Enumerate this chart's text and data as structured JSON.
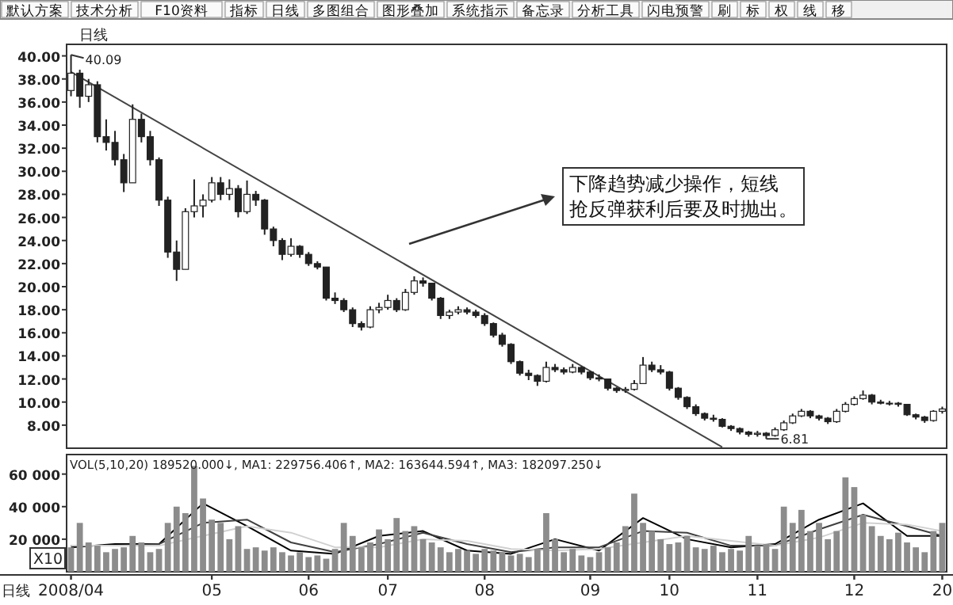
{
  "chart_data": [
    {
      "type": "candlestick",
      "title": "日线",
      "tick_labels": "y",
      "categories": [
        "2008/04",
        null,
        null,
        null,
        null,
        null,
        null,
        null,
        null,
        null,
        null,
        null,
        null,
        null,
        null,
        null,
        "05",
        null,
        null,
        null,
        null,
        null,
        null,
        null,
        null,
        null,
        null,
        "06",
        null,
        null,
        null,
        null,
        null,
        null,
        null,
        null,
        "07",
        null,
        null,
        null,
        null,
        null,
        null,
        null,
        null,
        null,
        null,
        "08",
        null,
        null,
        null,
        null,
        null,
        null,
        null,
        null,
        null,
        null,
        null,
        "09",
        null,
        null,
        null,
        null,
        null,
        null,
        null,
        null,
        "10",
        null,
        null,
        null,
        null,
        null,
        null,
        null,
        null,
        null,
        "11",
        null,
        null,
        null,
        null,
        null,
        null,
        null,
        null,
        null,
        null,
        "12",
        null,
        null,
        null,
        null,
        null,
        null,
        null,
        null,
        null,
        "20"
      ],
      "ohlc": [
        [
          37,
          40.09,
          36.5,
          38.5
        ],
        [
          38.5,
          38.8,
          35.5,
          36.5
        ],
        [
          36.5,
          38,
          36,
          37.5
        ],
        [
          37.5,
          37.8,
          32.5,
          33
        ],
        [
          33,
          34.5,
          31.8,
          32.5
        ],
        [
          32.5,
          33.5,
          30.5,
          31
        ],
        [
          31,
          31.5,
          28.2,
          29
        ],
        [
          29,
          35.8,
          29,
          34.5
        ],
        [
          34.5,
          35,
          32.5,
          33
        ],
        [
          33,
          33.5,
          30.5,
          31
        ],
        [
          31,
          31.2,
          27,
          27.5
        ],
        [
          27.5,
          27.8,
          22.5,
          23
        ],
        [
          23,
          24,
          20.5,
          21.5
        ],
        [
          21.5,
          26.8,
          21.5,
          26.5
        ],
        [
          26.5,
          29.3,
          26,
          27
        ],
        [
          27,
          28,
          26,
          27.5
        ],
        [
          27.5,
          29.5,
          27.3,
          29
        ],
        [
          29,
          29.5,
          27.5,
          28
        ],
        [
          28,
          29.3,
          27.5,
          28.5
        ],
        [
          28.5,
          28.8,
          26,
          26.5
        ],
        [
          26.5,
          29.2,
          26.3,
          28
        ],
        [
          28,
          28.3,
          27,
          27.5
        ],
        [
          27.5,
          27.6,
          24.5,
          25
        ],
        [
          25,
          25.2,
          23.5,
          24
        ],
        [
          24,
          24.2,
          22.3,
          22.8
        ],
        [
          22.8,
          24.2,
          22.6,
          23.5
        ],
        [
          23.5,
          23.6,
          22.5,
          22.8
        ],
        [
          22.8,
          23,
          21.8,
          22
        ],
        [
          22,
          22.2,
          21.5,
          21.7
        ],
        [
          21.7,
          21.7,
          18.8,
          19
        ],
        [
          19,
          19.5,
          18.5,
          18.8
        ],
        [
          18.8,
          19,
          17.8,
          18
        ],
        [
          18,
          18.2,
          16.5,
          16.8
        ],
        [
          16.8,
          17,
          16.2,
          16.5
        ],
        [
          16.5,
          18.3,
          16.4,
          18
        ],
        [
          18,
          18.6,
          17.7,
          18.2
        ],
        [
          18.2,
          19.3,
          18,
          18.8
        ],
        [
          18.8,
          19,
          17.8,
          18
        ],
        [
          18,
          19.8,
          17.9,
          19.5
        ],
        [
          19.5,
          20.9,
          19.3,
          20.5
        ],
        [
          20.5,
          20.8,
          20,
          20.3
        ],
        [
          20.3,
          20.3,
          18.8,
          19
        ],
        [
          19,
          19.1,
          17.2,
          17.5
        ],
        [
          17.5,
          18,
          17.2,
          17.8
        ],
        [
          17.8,
          18.3,
          17.6,
          18
        ],
        [
          18,
          18.2,
          17.6,
          17.8
        ],
        [
          17.8,
          18,
          17.3,
          17.5
        ],
        [
          17.5,
          17.7,
          16.6,
          16.8
        ],
        [
          16.8,
          16.9,
          15.6,
          15.8
        ],
        [
          15.8,
          16,
          14.8,
          15
        ],
        [
          15,
          15.1,
          13.3,
          13.5
        ],
        [
          13.5,
          13.6,
          12.3,
          12.5
        ],
        [
          12.5,
          12.8,
          11.9,
          12.3
        ],
        [
          12.3,
          12.4,
          11.4,
          11.8
        ],
        [
          11.8,
          13.5,
          11.7,
          13
        ],
        [
          13,
          13.3,
          12.6,
          12.8
        ],
        [
          12.8,
          13,
          12.4,
          12.6
        ],
        [
          12.6,
          13.3,
          12.5,
          13
        ],
        [
          13,
          13.1,
          12.4,
          12.6
        ],
        [
          12.6,
          12.7,
          11.9,
          12.1
        ],
        [
          12.1,
          12.4,
          11.8,
          12
        ],
        [
          12,
          12,
          11,
          11.2
        ],
        [
          11.2,
          11.3,
          10.8,
          11
        ],
        [
          11,
          11.3,
          10.8,
          11.1
        ],
        [
          11.1,
          11.9,
          11,
          11.6
        ],
        [
          11.6,
          13.9,
          11.6,
          13.2
        ],
        [
          13.2,
          13.5,
          12.6,
          12.8
        ],
        [
          12.8,
          13.2,
          12.4,
          12.6
        ],
        [
          12.6,
          12.7,
          11,
          11.2
        ],
        [
          11.2,
          11.3,
          10.2,
          10.4
        ],
        [
          10.4,
          10.5,
          9.4,
          9.6
        ],
        [
          9.6,
          9.8,
          8.8,
          9
        ],
        [
          9,
          9.1,
          8.4,
          8.6
        ],
        [
          8.6,
          8.9,
          8.3,
          8.5
        ],
        [
          8.5,
          8.6,
          7.8,
          7.9
        ],
        [
          7.9,
          8,
          7.5,
          7.7
        ],
        [
          7.7,
          7.8,
          7.2,
          7.4
        ],
        [
          7.4,
          7.5,
          7,
          7.2
        ],
        [
          7.2,
          7.5,
          7,
          7.3
        ],
        [
          7.3,
          7.4,
          6.81,
          7.1
        ],
        [
          7.1,
          7.8,
          7,
          7.6
        ],
        [
          7.6,
          8.4,
          7.5,
          8.2
        ],
        [
          8.2,
          9,
          8.1,
          8.8
        ],
        [
          8.8,
          9.4,
          8.7,
          9.2
        ],
        [
          9.2,
          9.3,
          8.6,
          8.8
        ],
        [
          8.8,
          8.9,
          8.4,
          8.6
        ],
        [
          8.6,
          8.7,
          8.1,
          8.3
        ],
        [
          8.3,
          9.4,
          8.2,
          9.2
        ],
        [
          9.2,
          10,
          9.1,
          9.8
        ],
        [
          9.8,
          10.5,
          9.7,
          10.3
        ],
        [
          10.3,
          11,
          10.2,
          10.6
        ],
        [
          10.6,
          10.7,
          9.8,
          10
        ],
        [
          10,
          10.2,
          9.8,
          9.9
        ],
        [
          9.9,
          10.1,
          9.7,
          9.9
        ],
        [
          9.9,
          10,
          9.6,
          9.8
        ],
        [
          9.8,
          9.8,
          8.8,
          8.9
        ],
        [
          8.9,
          9,
          8.5,
          8.7
        ],
        [
          8.7,
          8.8,
          8.2,
          8.4
        ],
        [
          8.4,
          9.3,
          8.3,
          9.2
        ],
        [
          9.2,
          9.6,
          9,
          9.4
        ]
      ],
      "color": "#222222",
      "series": [
        {
          "type": "line",
          "color": "#444444",
          "values": [
            38.6,
            null,
            null,
            null,
            null,
            null,
            null,
            null,
            null,
            null,
            null,
            null,
            null,
            null,
            null,
            null,
            null,
            null,
            null,
            null,
            null,
            null,
            null,
            null,
            null,
            null,
            null,
            null,
            null,
            null,
            null,
            null,
            null,
            null,
            null,
            null,
            null,
            null,
            null,
            null,
            null,
            null,
            null,
            null,
            null,
            null,
            null,
            null,
            null,
            null,
            null,
            null,
            null,
            null,
            null,
            null,
            null,
            null,
            null,
            null,
            null,
            null,
            null,
            null,
            null,
            null,
            null,
            null,
            null,
            null,
            null,
            null,
            null,
            null,
            6.1,
            null,
            null,
            null,
            null,
            null,
            null,
            null,
            null,
            null,
            null,
            null,
            null,
            null,
            null,
            null,
            null,
            null,
            null,
            null,
            null,
            null,
            null,
            null,
            null,
            null
          ]
        }
      ],
      "ylim": [
        6,
        41
      ],
      "yticks": [
        {
          "value": 8,
          "label": "8.00"
        },
        {
          "value": 10,
          "label": "10.00"
        },
        {
          "value": 12,
          "label": "12.00"
        },
        {
          "value": 14,
          "label": "14.00"
        },
        {
          "value": 16,
          "label": "16.00"
        },
        {
          "value": 18,
          "label": "18.00"
        },
        {
          "value": 20,
          "label": "20.00"
        },
        {
          "value": 22,
          "label": "22.00"
        },
        {
          "value": 24,
          "label": "24.00"
        },
        {
          "value": 26,
          "label": "26.00"
        },
        {
          "value": 28,
          "label": "28.00"
        },
        {
          "value": 30,
          "label": "30.00"
        },
        {
          "value": 32,
          "label": "32.00"
        },
        {
          "value": 34,
          "label": "34.00"
        },
        {
          "value": 36,
          "label": "36.00"
        },
        {
          "value": 38,
          "label": "38.00"
        },
        {
          "value": 40,
          "label": "40.00"
        }
      ],
      "annotations": [
        "下降趋势减少操作，短线抢反弹获利后要及时抛出。",
        "40.09",
        "6.81",
        "默认方案",
        "技术分析",
        "F10资料",
        "指标",
        "日线",
        "多图组合",
        "图形叠加",
        "系统指示",
        "备忘录",
        "分析工具",
        "闪电预警",
        "刷",
        "标",
        "权",
        "线",
        "移"
      ]
    },
    {
      "type": "bar",
      "categories": [
        "2008/04",
        null,
        null,
        null,
        null,
        null,
        null,
        null,
        null,
        null,
        null,
        null,
        null,
        null,
        null,
        null,
        "05",
        null,
        null,
        null,
        null,
        null,
        null,
        null,
        null,
        null,
        null,
        "06",
        null,
        null,
        null,
        null,
        null,
        null,
        null,
        null,
        "07",
        null,
        null,
        null,
        null,
        null,
        null,
        null,
        null,
        null,
        null,
        "08",
        null,
        null,
        null,
        null,
        null,
        null,
        null,
        null,
        null,
        null,
        null,
        "09",
        null,
        null,
        null,
        null,
        null,
        null,
        null,
        null,
        "10",
        null,
        null,
        null,
        null,
        null,
        null,
        null,
        null,
        null,
        "11",
        null,
        null,
        null,
        null,
        null,
        null,
        null,
        null,
        null,
        null,
        "12",
        null,
        null,
        null,
        null,
        null,
        null,
        null,
        null,
        null,
        "20"
      ],
      "values": [
        15000,
        30000,
        18000,
        16000,
        12000,
        14000,
        15000,
        22000,
        18000,
        12000,
        14000,
        30000,
        40000,
        36000,
        65000,
        45000,
        32000,
        30000,
        20000,
        28000,
        14000,
        15000,
        13000,
        15000,
        12000,
        10000,
        12000,
        9000,
        10000,
        8000,
        14000,
        30000,
        22000,
        15000,
        18000,
        26000,
        20000,
        33000,
        25000,
        28000,
        20000,
        18000,
        15000,
        12000,
        14000,
        13000,
        11000,
        14000,
        13000,
        12000,
        10000,
        11000,
        9000,
        14000,
        36000,
        20000,
        12000,
        14000,
        10000,
        9000,
        12000,
        15000,
        18000,
        28000,
        48000,
        30000,
        25000,
        20000,
        17000,
        18000,
        22000,
        15000,
        14000,
        16000,
        12000,
        14000,
        13000,
        22000,
        16000,
        17000,
        14000,
        40000,
        30000,
        38000,
        25000,
        30000,
        20000,
        25000,
        58000,
        52000,
        35000,
        28000,
        22000,
        20000,
        24000,
        18000,
        15000,
        12000,
        25000,
        30000
      ],
      "color": "#8c8c8c",
      "series": [
        {
          "type": "line",
          "color": "#000000",
          "values": [
            15000,
            null,
            null,
            null,
            null,
            17000,
            null,
            null,
            null,
            null,
            17000,
            null,
            null,
            null,
            null,
            42000,
            null,
            null,
            null,
            null,
            28000,
            null,
            null,
            null,
            null,
            13000,
            null,
            null,
            null,
            null,
            11000,
            null,
            null,
            null,
            null,
            22000,
            null,
            null,
            null,
            null,
            25000,
            null,
            null,
            null,
            null,
            13000,
            null,
            null,
            null,
            null,
            11000,
            null,
            null,
            null,
            null,
            20000,
            null,
            null,
            null,
            null,
            13000,
            null,
            null,
            null,
            null,
            33000,
            null,
            null,
            null,
            null,
            20000,
            null,
            null,
            null,
            null,
            15000,
            null,
            null,
            null,
            null,
            17000,
            null,
            null,
            null,
            null,
            32000,
            null,
            null,
            null,
            null,
            42000,
            null,
            null,
            null,
            null,
            22000,
            null,
            null,
            null,
            22000
          ]
        },
        {
          "type": "line",
          "color": "#404040",
          "values": [
            16000,
            null,
            null,
            null,
            null,
            16000,
            null,
            null,
            null,
            null,
            17000,
            null,
            null,
            null,
            null,
            30000,
            null,
            null,
            null,
            null,
            32000,
            null,
            null,
            null,
            null,
            18000,
            null,
            null,
            null,
            null,
            12000,
            null,
            null,
            null,
            null,
            17000,
            null,
            null,
            null,
            null,
            24000,
            null,
            null,
            null,
            null,
            17000,
            null,
            null,
            null,
            null,
            12000,
            null,
            null,
            null,
            null,
            15000,
            null,
            null,
            null,
            null,
            15000,
            null,
            null,
            null,
            null,
            25000,
            null,
            null,
            null,
            null,
            24000,
            null,
            null,
            null,
            null,
            16000,
            null,
            null,
            null,
            null,
            16000,
            null,
            null,
            null,
            null,
            26000,
            null,
            null,
            null,
            null,
            35000,
            null,
            null,
            null,
            null,
            28000,
            null,
            null,
            null,
            22000
          ]
        },
        {
          "type": "line",
          "color": "#d0d0d0",
          "values": [
            16000,
            null,
            null,
            null,
            null,
            16000,
            null,
            null,
            null,
            null,
            16000,
            null,
            null,
            null,
            null,
            22000,
            null,
            null,
            null,
            null,
            28000,
            null,
            null,
            null,
            null,
            24000,
            null,
            null,
            null,
            null,
            15000,
            null,
            null,
            null,
            null,
            15000,
            null,
            null,
            null,
            null,
            20000,
            null,
            null,
            null,
            null,
            19000,
            null,
            null,
            null,
            null,
            14000,
            null,
            null,
            null,
            null,
            13000,
            null,
            null,
            null,
            null,
            14000,
            null,
            null,
            null,
            null,
            18000,
            null,
            null,
            null,
            null,
            22000,
            null,
            null,
            null,
            null,
            19000,
            null,
            null,
            null,
            null,
            16000,
            null,
            null,
            null,
            null,
            21000,
            null,
            null,
            null,
            null,
            30000,
            null,
            null,
            null,
            null,
            29000,
            null,
            null,
            null,
            25000
          ]
        }
      ],
      "ylim": [
        0,
        72000
      ],
      "yticks": [
        {
          "value": 20000,
          "label": "20 000"
        },
        {
          "value": 40000,
          "label": "40 000"
        },
        {
          "value": 60000,
          "label": "60 000"
        }
      ],
      "annotations": [
        "VOL(5,10,20) 189520.000↓, MA1: 229756.406↑, MA2: 163644.594↑, MA3: 182097.250↓",
        "X10",
        "日线"
      ]
    }
  ]
}
